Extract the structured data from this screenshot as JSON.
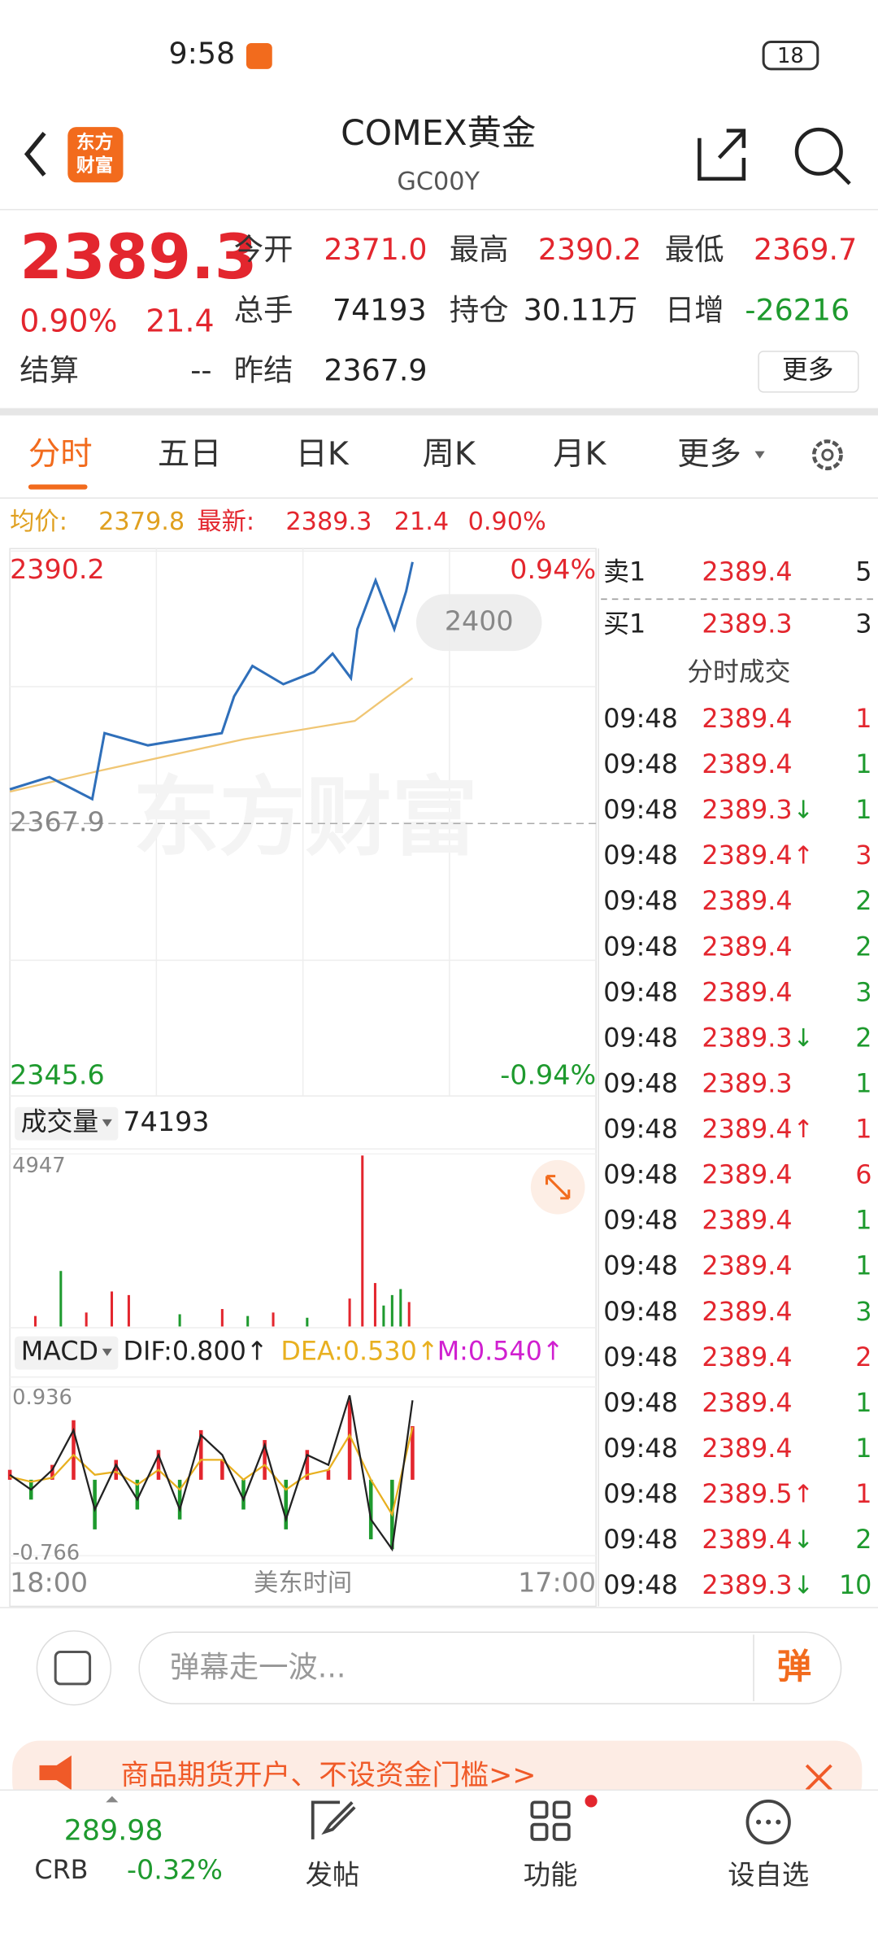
{
  "status_bar": {
    "time": "9:58",
    "battery": "18"
  },
  "header": {
    "logo_top": "东方",
    "logo_bottom": "财富",
    "title": "COMEX黄金",
    "code": "GC00Y"
  },
  "quote": {
    "price": "2389.3",
    "change_pct": "0.90%",
    "change": "21.4",
    "fields": [
      {
        "label": "今开",
        "value": "2371.0"
      },
      {
        "label": "最高",
        "value": "2390.2"
      },
      {
        "label": "最低",
        "value": "2369.7"
      },
      {
        "label": "总手",
        "value": "74193"
      },
      {
        "label": "持仓",
        "value": "30.11万"
      },
      {
        "label": "日增",
        "value": "-26216"
      }
    ],
    "settle_label": "结算",
    "settle_value": "--",
    "prev_label": "昨结",
    "prev_value": "2367.9",
    "more": "更多"
  },
  "tabs": [
    "分时",
    "五日",
    "日K",
    "周K",
    "月K",
    "更多"
  ],
  "chart_header": {
    "avg_label": "均价:",
    "avg": "2379.8",
    "last_label": "最新:",
    "last": "2389.3",
    "change": "21.4",
    "pct": "0.90%"
  },
  "intraday_chart": {
    "type": "line",
    "ylim": [
      2345.6,
      2390.2
    ],
    "yticks": [
      2390.2,
      2367.9,
      2345.6
    ],
    "pct_labels": [
      "0.94%",
      "-0.94%"
    ],
    "xlim": [
      0,
      1380
    ],
    "x_labels": [
      "18:00",
      "美东时间",
      "17:00"
    ],
    "watermark": "东方财富",
    "bubble": "2400",
    "price": {
      "color": "#2f6fba",
      "x": [
        0,
        93,
        194,
        223,
        325,
        412,
        499,
        528,
        571,
        644,
        716,
        760,
        803,
        818,
        861,
        905,
        933,
        948
      ],
      "values": [
        2370.7,
        2371.7,
        2369.9,
        2375.3,
        2374.3,
        2374.8,
        2375.3,
        2378.3,
        2380.8,
        2379.3,
        2380.3,
        2381.8,
        2379.8,
        2383.8,
        2387.8,
        2383.8,
        2386.9,
        2389.3
      ]
    },
    "average": {
      "color": "#f0c674",
      "x": [
        0,
        209,
        551,
        812,
        870,
        948
      ],
      "values": [
        2370.5,
        2372.2,
        2374.8,
        2376.3,
        2377.8,
        2379.8
      ]
    }
  },
  "volume_chart": {
    "type": "bar",
    "label": "成交量",
    "total": "74193",
    "ylim": [
      0,
      4947
    ],
    "yticks": [
      4947
    ],
    "x": [
      60,
      120,
      180,
      240,
      280,
      400,
      500,
      560,
      620,
      700,
      800,
      830,
      860,
      880,
      900,
      920,
      940
    ],
    "values": [
      300,
      1591,
      400,
      1003,
      900,
      350,
      500,
      300,
      400,
      250,
      800,
      4900,
      1245,
      600,
      900,
      1072,
      700
    ],
    "colors": [
      "#e3262e",
      "#1e9a2e",
      "#e3262e",
      "#e3262e",
      "#e3262e",
      "#1e9a2e",
      "#e3262e",
      "#1e9a2e",
      "#e3262e",
      "#1e9a2e",
      "#e3262e",
      "#e3262e",
      "#e3262e",
      "#1e9a2e",
      "#1e9a2e",
      "#1e9a2e",
      "#e3262e"
    ]
  },
  "macd_chart": {
    "type": "bar",
    "label": "MACD",
    "dif": "DIF:0.800↑",
    "dea": "DEA:0.530↑",
    "m": "M:0.540↑",
    "ylim": [
      -0.766,
      0.936
    ],
    "yticks": [
      0.936,
      -0.766
    ],
    "up_color": "#e3262e",
    "down_color": "#1e9a2e",
    "x": [
      0,
      50,
      100,
      150,
      200,
      250,
      300,
      350,
      400,
      450,
      500,
      550,
      600,
      650,
      700,
      750,
      800,
      850,
      900,
      948
    ],
    "values": [
      0.1,
      -0.2,
      0.15,
      0.6,
      -0.5,
      0.2,
      -0.3,
      0.3,
      -0.4,
      0.5,
      0.2,
      -0.3,
      0.4,
      -0.5,
      0.3,
      0.1,
      0.8,
      -0.6,
      -0.7,
      0.54
    ],
    "dif_line": {
      "color": "#222222",
      "values": [
        0.05,
        -0.1,
        0.1,
        0.5,
        -0.3,
        0.15,
        -0.2,
        0.25,
        -0.3,
        0.45,
        0.25,
        -0.2,
        0.35,
        -0.4,
        0.25,
        0.15,
        0.85,
        -0.4,
        -0.7,
        0.8
      ]
    },
    "dea_line": {
      "color": "#e8b020",
      "values": [
        0.03,
        -0.02,
        0.02,
        0.25,
        0.05,
        0.08,
        -0.05,
        0.1,
        -0.1,
        0.2,
        0.2,
        0.0,
        0.15,
        -0.1,
        0.05,
        0.1,
        0.45,
        0.0,
        -0.35,
        0.53
      ]
    }
  },
  "order_book": {
    "ask_label": "卖1",
    "ask_price": "2389.4",
    "ask_volume": "5",
    "bid_label": "买1",
    "bid_price": "2389.3",
    "bid_volume": "3",
    "trades_title": "分时成交"
  },
  "trades": [
    {
      "time": "09:48",
      "price": "2389.4",
      "volume": "1",
      "volume_color": "#e3262e"
    },
    {
      "time": "09:48",
      "price": "2389.4",
      "volume": "1",
      "volume_color": "#1e9a2e"
    },
    {
      "time": "09:48",
      "price": "2389.3",
      "arrow": "↓",
      "volume": "1",
      "volume_color": "#1e9a2e"
    },
    {
      "time": "09:48",
      "price": "2389.4",
      "arrow": "↑",
      "volume": "3",
      "volume_color": "#e3262e"
    },
    {
      "time": "09:48",
      "price": "2389.4",
      "volume": "2",
      "volume_color": "#1e9a2e"
    },
    {
      "time": "09:48",
      "price": "2389.4",
      "volume": "2",
      "volume_color": "#1e9a2e"
    },
    {
      "time": "09:48",
      "price": "2389.4",
      "volume": "3",
      "volume_color": "#1e9a2e"
    },
    {
      "time": "09:48",
      "price": "2389.3",
      "arrow": "↓",
      "volume": "2",
      "volume_color": "#1e9a2e"
    },
    {
      "time": "09:48",
      "price": "2389.3",
      "volume": "1",
      "volume_color": "#1e9a2e"
    },
    {
      "time": "09:48",
      "price": "2389.4",
      "arrow": "↑",
      "volume": "1",
      "volume_color": "#e3262e"
    },
    {
      "time": "09:48",
      "price": "2389.4",
      "volume": "6",
      "volume_color": "#e3262e"
    },
    {
      "time": "09:48",
      "price": "2389.4",
      "volume": "1",
      "volume_color": "#1e9a2e"
    },
    {
      "time": "09:48",
      "price": "2389.4",
      "volume": "1",
      "volume_color": "#1e9a2e"
    },
    {
      "time": "09:48",
      "price": "2389.4",
      "volume": "3",
      "volume_color": "#1e9a2e"
    },
    {
      "time": "09:48",
      "price": "2389.4",
      "volume": "2",
      "volume_color": "#e3262e"
    },
    {
      "time": "09:48",
      "price": "2389.4",
      "volume": "1",
      "volume_color": "#1e9a2e"
    },
    {
      "time": "09:48",
      "price": "2389.4",
      "volume": "1",
      "volume_color": "#1e9a2e"
    },
    {
      "time": "09:48",
      "price": "2389.5",
      "arrow": "↑",
      "volume": "1",
      "volume_color": "#e3262e"
    },
    {
      "time": "09:48",
      "price": "2389.4",
      "arrow": "↓",
      "volume": "2",
      "volume_color": "#1e9a2e"
    },
    {
      "time": "09:48",
      "price": "2389.3",
      "arrow": "↓",
      "volume": "10",
      "volume_color": "#1e9a2e"
    }
  ],
  "comment_bar": {
    "placeholder": "弹幕走一波...",
    "button": "弹"
  },
  "banner": {
    "text": "商品期货开户、不设资金门槛>>"
  },
  "bottom_nav": {
    "index_value": "289.98",
    "index_name": "CRB",
    "index_change": "-0.32%",
    "post": "发帖",
    "functions": "功能",
    "watchlist": "设自选"
  }
}
